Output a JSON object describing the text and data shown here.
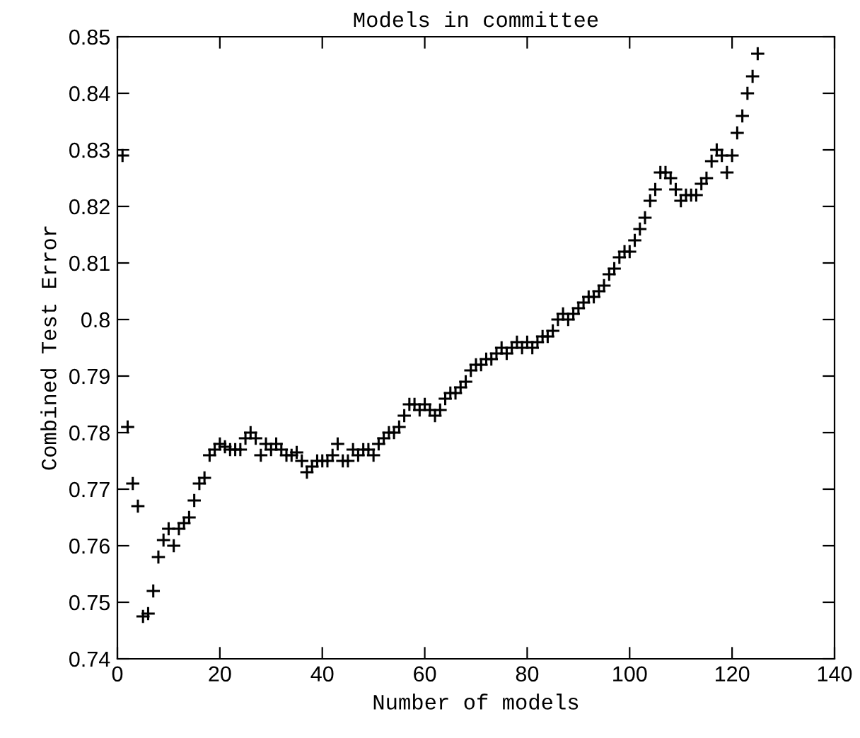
{
  "chart_data": {
    "type": "scatter",
    "title": "Models in committee",
    "xlabel": "Number of models",
    "ylabel": "Combined Test Error",
    "x": [
      1,
      2,
      3,
      4,
      5,
      6,
      7,
      8,
      9,
      10,
      11,
      12,
      13,
      14,
      15,
      16,
      17,
      18,
      19,
      20,
      21,
      22,
      23,
      24,
      25,
      26,
      27,
      28,
      29,
      30,
      31,
      32,
      33,
      34,
      35,
      36,
      37,
      38,
      39,
      40,
      41,
      42,
      43,
      44,
      45,
      46,
      47,
      48,
      49,
      50,
      51,
      52,
      53,
      54,
      55,
      56,
      57,
      58,
      59,
      60,
      61,
      62,
      63,
      64,
      65,
      66,
      67,
      68,
      69,
      70,
      71,
      72,
      73,
      74,
      75,
      76,
      77,
      78,
      79,
      80,
      81,
      82,
      83,
      84,
      85,
      86,
      87,
      88,
      89,
      90,
      91,
      92,
      93,
      94,
      95,
      96,
      97,
      98,
      99,
      100,
      101,
      102,
      103,
      104,
      105,
      106,
      107,
      108,
      109,
      110,
      111,
      112,
      113,
      114,
      115,
      116,
      117,
      118,
      119,
      120,
      121,
      122,
      123,
      124,
      125
    ],
    "series": [
      {
        "color": "#000000",
        "values": [
          0.829,
          0.781,
          0.771,
          0.767,
          0.7475,
          0.748,
          0.752,
          0.758,
          0.761,
          0.763,
          0.76,
          0.763,
          0.764,
          0.765,
          0.768,
          0.771,
          0.772,
          0.776,
          0.777,
          0.778,
          0.7775,
          0.777,
          0.777,
          0.777,
          0.779,
          0.78,
          0.779,
          0.776,
          0.778,
          0.777,
          0.778,
          0.777,
          0.776,
          0.776,
          0.7765,
          0.775,
          0.773,
          0.774,
          0.775,
          0.775,
          0.775,
          0.776,
          0.778,
          0.775,
          0.775,
          0.777,
          0.776,
          0.777,
          0.777,
          0.776,
          0.778,
          0.779,
          0.78,
          0.78,
          0.781,
          0.783,
          0.785,
          0.785,
          0.784,
          0.785,
          0.784,
          0.783,
          0.784,
          0.786,
          0.787,
          0.787,
          0.788,
          0.789,
          0.791,
          0.792,
          0.792,
          0.793,
          0.793,
          0.794,
          0.795,
          0.794,
          0.795,
          0.796,
          0.795,
          0.796,
          0.795,
          0.796,
          0.797,
          0.797,
          0.798,
          0.8,
          0.801,
          0.8,
          0.801,
          0.802,
          0.803,
          0.804,
          0.804,
          0.805,
          0.806,
          0.808,
          0.809,
          0.811,
          0.812,
          0.812,
          0.814,
          0.816,
          0.818,
          0.821,
          0.823,
          0.826,
          0.826,
          0.825,
          0.823,
          0.821,
          0.822,
          0.822,
          0.822,
          0.824,
          0.825,
          0.828,
          0.83,
          0.829,
          0.826,
          0.829,
          0.833,
          0.836,
          0.84,
          0.843,
          0.847
        ]
      }
    ],
    "xlim": [
      0,
      140
    ],
    "xticks": [
      0,
      20,
      40,
      60,
      80,
      100,
      120,
      140
    ],
    "ylim": [
      0.74,
      0.85
    ],
    "yticks": [
      {
        "value": 0.74,
        "label": "0.74"
      },
      {
        "value": 0.75,
        "label": "0.75"
      },
      {
        "value": 0.76,
        "label": "0.76"
      },
      {
        "value": 0.77,
        "label": "0.77"
      },
      {
        "value": 0.78,
        "label": "0.78"
      },
      {
        "value": 0.79,
        "label": "0.79"
      },
      {
        "value": 0.8,
        "label": "0.8"
      },
      {
        "value": 0.81,
        "label": "0.81"
      },
      {
        "value": 0.82,
        "label": "0.82"
      },
      {
        "value": 0.83,
        "label": "0.83"
      },
      {
        "value": 0.84,
        "label": "0.84"
      },
      {
        "value": 0.85,
        "label": "0.85"
      }
    ],
    "marker": "cross",
    "grid": false,
    "legend": false
  }
}
